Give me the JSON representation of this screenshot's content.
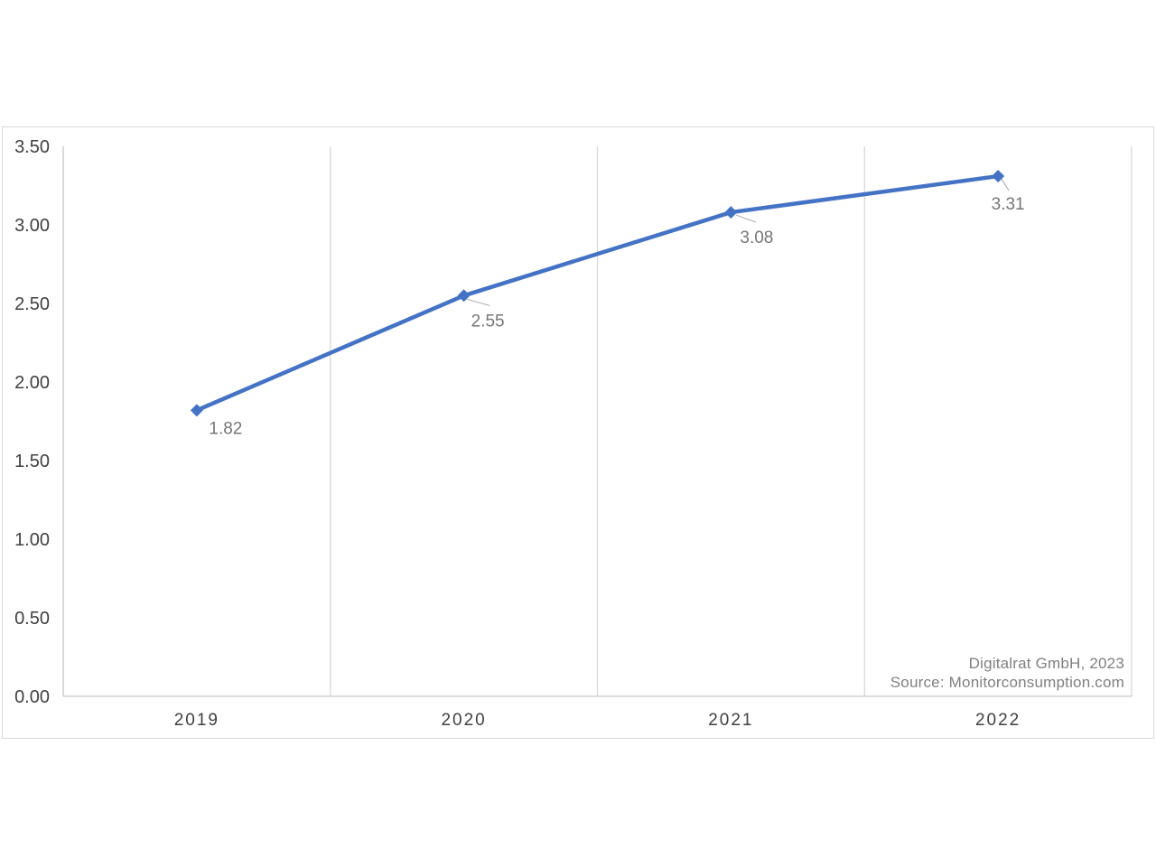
{
  "chart_data": {
    "type": "line",
    "title": "",
    "xlabel": "",
    "ylabel": "",
    "categories": [
      "2019",
      "2020",
      "2021",
      "2022"
    ],
    "series": [
      {
        "name": "value",
        "values": [
          1.82,
          2.55,
          3.08,
          3.31
        ]
      }
    ],
    "data_labels": [
      "1.82",
      "2.55",
      "3.08",
      "3.31"
    ],
    "ylim": [
      0,
      3.5
    ],
    "ytick_step": 0.5,
    "ytick_labels": [
      "0.00",
      "0.50",
      "1.00",
      "1.50",
      "2.00",
      "2.50",
      "3.00",
      "3.50"
    ],
    "grid": "vertical-only",
    "legend": "none",
    "marker": "diamond",
    "attribution": [
      "Digitalrat GmbH, 2023",
      "Source: Monitorconsumption.com"
    ],
    "colors": {
      "series": "#4472C4",
      "gridline": "#D9D9D9",
      "axis_line": "#C6C6C6",
      "tick_text": "#404040",
      "data_label_text": "#767676",
      "leader_line": "#A6A6A6",
      "attribution_text": "#808080",
      "frame_border": "#D9D9D9",
      "background": "#FFFFFF"
    }
  }
}
